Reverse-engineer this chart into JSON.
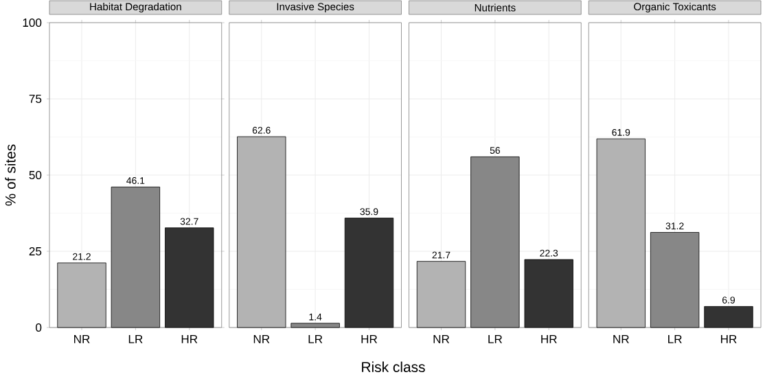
{
  "chart_data": [
    {
      "type": "bar",
      "title": "Habitat Degradation",
      "ylabel": "% of sites",
      "categories": [
        "NR",
        "LR",
        "HR"
      ],
      "values": [
        21.2,
        46.1,
        32.7
      ],
      "colors": [
        "#b3b3b3",
        "#878787",
        "#333333"
      ],
      "ylim": [
        0,
        100
      ],
      "yticks": [
        0,
        25,
        50,
        75,
        100
      ],
      "grid": true,
      "data_labels": true
    },
    {
      "type": "bar",
      "title": "Invasive Species",
      "xlabel": "Risk class",
      "categories": [
        "NR",
        "LR",
        "HR"
      ],
      "values": [
        62.6,
        1.4,
        35.9
      ],
      "colors": [
        "#b3b3b3",
        "#878787",
        "#333333"
      ],
      "ylim": [
        0,
        100
      ],
      "yticks": [
        0,
        25,
        50,
        75,
        100
      ],
      "grid": true,
      "data_labels": true,
      "tick_labels": "x"
    },
    {
      "type": "bar",
      "title": "Nutrients",
      "categories": [
        "NR",
        "LR",
        "HR"
      ],
      "values": [
        21.7,
        56,
        22.3
      ],
      "colors": [
        "#b3b3b3",
        "#878787",
        "#333333"
      ],
      "ylim": [
        0,
        100
      ],
      "yticks": [
        0,
        25,
        50,
        75,
        100
      ],
      "grid": true,
      "data_labels": true,
      "tick_labels": "x"
    },
    {
      "type": "bar",
      "title": "Organic Toxicants",
      "categories": [
        "NR",
        "LR",
        "HR"
      ],
      "values": [
        61.9,
        31.2,
        6.9
      ],
      "colors": [
        "#b3b3b3",
        "#878787",
        "#333333"
      ],
      "ylim": [
        0,
        100
      ],
      "yticks": [
        0,
        25,
        50,
        75,
        100
      ],
      "grid": true,
      "data_labels": true,
      "tick_labels": "x"
    }
  ]
}
